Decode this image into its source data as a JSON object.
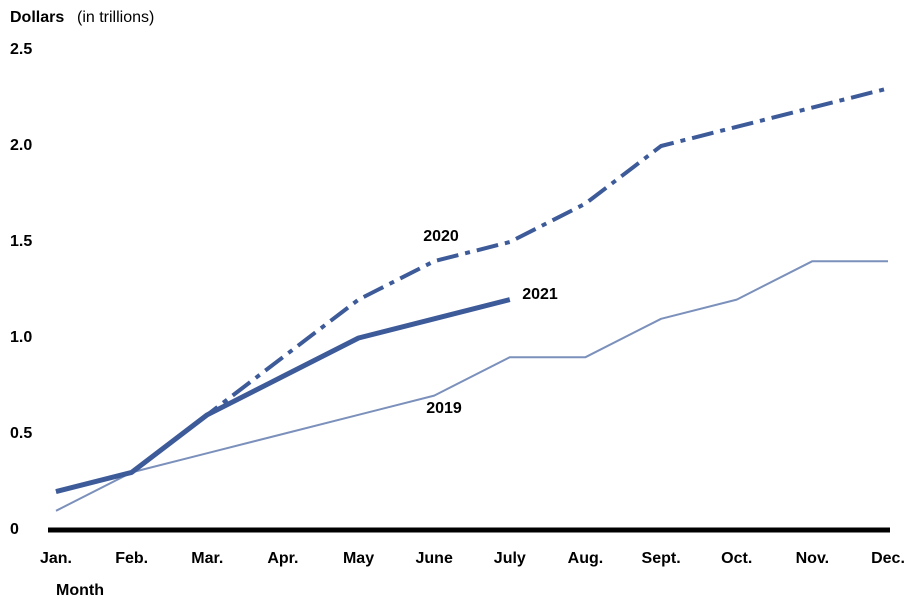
{
  "chart_data": {
    "type": "line",
    "y_axis_label": "Dollars",
    "y_axis_unit": "(in trillions)",
    "x_axis_label": "Month",
    "categories": [
      "Jan.",
      "Feb.",
      "Mar.",
      "Apr.",
      "May",
      "June",
      "July",
      "Aug.",
      "Sept.",
      "Oct.",
      "Nov.",
      "Dec."
    ],
    "series": [
      {
        "name": "2019",
        "color": "#7b90bb",
        "line_width": 2,
        "dash": "solid",
        "values": [
          0.1,
          0.3,
          0.4,
          0.5,
          0.6,
          0.7,
          0.9,
          0.9,
          1.1,
          1.2,
          1.4,
          1.4
        ]
      },
      {
        "name": "2020",
        "color": "#3d5a99",
        "line_width": 4,
        "dash": "dashdot",
        "values": [
          0.2,
          0.3,
          0.6,
          0.9,
          1.2,
          1.4,
          1.5,
          1.7,
          2.0,
          2.1,
          2.2,
          2.3
        ]
      },
      {
        "name": "2021",
        "color": "#3d5a99",
        "line_width": 5,
        "dash": "solid",
        "values": [
          0.2,
          0.3,
          0.6,
          0.8,
          1.0,
          1.1,
          1.2,
          null,
          null,
          null,
          null,
          null
        ]
      }
    ],
    "ylim": [
      0,
      2.5
    ],
    "yticks": [
      0,
      0.5,
      {
        "value": 1,
        "label": "1.0"
      },
      1.5,
      {
        "value": 2,
        "label": "2.0"
      },
      2.5
    ],
    "grid": false
  }
}
